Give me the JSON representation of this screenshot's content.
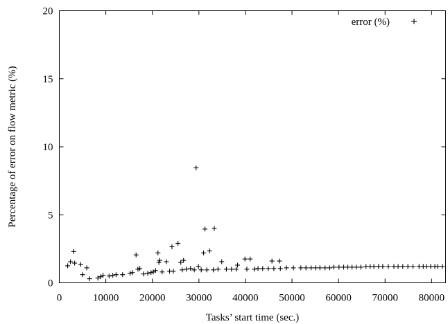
{
  "chart_data": {
    "type": "scatter",
    "xlabel": "Tasks’ start time (sec.)",
    "ylabel": "Percentage of error on flow metric (%)",
    "xlim": [
      0,
      83000
    ],
    "ylim": [
      0,
      20
    ],
    "xticks": [
      0,
      10000,
      20000,
      30000,
      40000,
      50000,
      60000,
      70000,
      80000
    ],
    "yticks": [
      0,
      5,
      10,
      15,
      20
    ],
    "grid": false,
    "legend_position": "top-right",
    "series": [
      {
        "name": "error (%)",
        "marker": "+",
        "color": "#000000",
        "points": [
          [
            1800,
            1.25
          ],
          [
            2400,
            1.55
          ],
          [
            3100,
            2.3
          ],
          [
            3300,
            1.45
          ],
          [
            4600,
            1.35
          ],
          [
            5000,
            0.6
          ],
          [
            5900,
            1.1
          ],
          [
            6500,
            0.3
          ],
          [
            8300,
            0.35
          ],
          [
            8900,
            0.45
          ],
          [
            9400,
            0.55
          ],
          [
            10700,
            0.5
          ],
          [
            11500,
            0.55
          ],
          [
            12200,
            0.6
          ],
          [
            13600,
            0.6
          ],
          [
            15200,
            0.7
          ],
          [
            15700,
            0.75
          ],
          [
            16500,
            2.05
          ],
          [
            16900,
            1.0
          ],
          [
            17300,
            1.05
          ],
          [
            18100,
            0.65
          ],
          [
            19000,
            0.7
          ],
          [
            19700,
            0.75
          ],
          [
            20200,
            0.8
          ],
          [
            20700,
            0.9
          ],
          [
            21200,
            2.2
          ],
          [
            21400,
            1.5
          ],
          [
            21600,
            1.65
          ],
          [
            22100,
            0.8
          ],
          [
            23000,
            1.55
          ],
          [
            23700,
            0.85
          ],
          [
            24200,
            2.65
          ],
          [
            24500,
            0.85
          ],
          [
            25500,
            2.9
          ],
          [
            26100,
            1.5
          ],
          [
            26400,
            0.95
          ],
          [
            26700,
            1.65
          ],
          [
            27300,
            1.0
          ],
          [
            28200,
            1.05
          ],
          [
            29000,
            0.95
          ],
          [
            29400,
            8.45
          ],
          [
            29900,
            1.2
          ],
          [
            30500,
            0.95
          ],
          [
            31000,
            2.2
          ],
          [
            31300,
            3.95
          ],
          [
            31700,
            0.95
          ],
          [
            32300,
            2.35
          ],
          [
            33100,
            0.95
          ],
          [
            33300,
            4.0
          ],
          [
            34100,
            1.0
          ],
          [
            34900,
            1.55
          ],
          [
            35900,
            1.0
          ],
          [
            37000,
            1.0
          ],
          [
            38000,
            1.0
          ],
          [
            38300,
            1.3
          ],
          [
            39900,
            1.75
          ],
          [
            40300,
            1.0
          ],
          [
            41000,
            1.75
          ],
          [
            41900,
            1.0
          ],
          [
            42700,
            1.05
          ],
          [
            43700,
            1.05
          ],
          [
            44900,
            1.05
          ],
          [
            45700,
            1.6
          ],
          [
            46100,
            1.05
          ],
          [
            47300,
            1.6
          ],
          [
            47500,
            1.05
          ],
          [
            48800,
            1.1
          ],
          [
            50300,
            1.1
          ],
          [
            51900,
            1.1
          ],
          [
            53000,
            1.1
          ],
          [
            54100,
            1.1
          ],
          [
            55100,
            1.1
          ],
          [
            56000,
            1.1
          ],
          [
            57100,
            1.1
          ],
          [
            58100,
            1.1
          ],
          [
            59000,
            1.15
          ],
          [
            60100,
            1.15
          ],
          [
            61100,
            1.15
          ],
          [
            62000,
            1.15
          ],
          [
            62900,
            1.15
          ],
          [
            63800,
            1.15
          ],
          [
            64800,
            1.15
          ],
          [
            65900,
            1.2
          ],
          [
            66800,
            1.2
          ],
          [
            67600,
            1.2
          ],
          [
            68600,
            1.2
          ],
          [
            69500,
            1.2
          ],
          [
            70700,
            1.2
          ],
          [
            71900,
            1.2
          ],
          [
            72800,
            1.2
          ],
          [
            73800,
            1.2
          ],
          [
            74900,
            1.2
          ],
          [
            76000,
            1.2
          ],
          [
            77300,
            1.2
          ],
          [
            78200,
            1.2
          ],
          [
            78900,
            1.2
          ],
          [
            79800,
            1.2
          ],
          [
            80700,
            1.2
          ],
          [
            81300,
            1.2
          ],
          [
            82300,
            1.2
          ]
        ]
      }
    ]
  }
}
